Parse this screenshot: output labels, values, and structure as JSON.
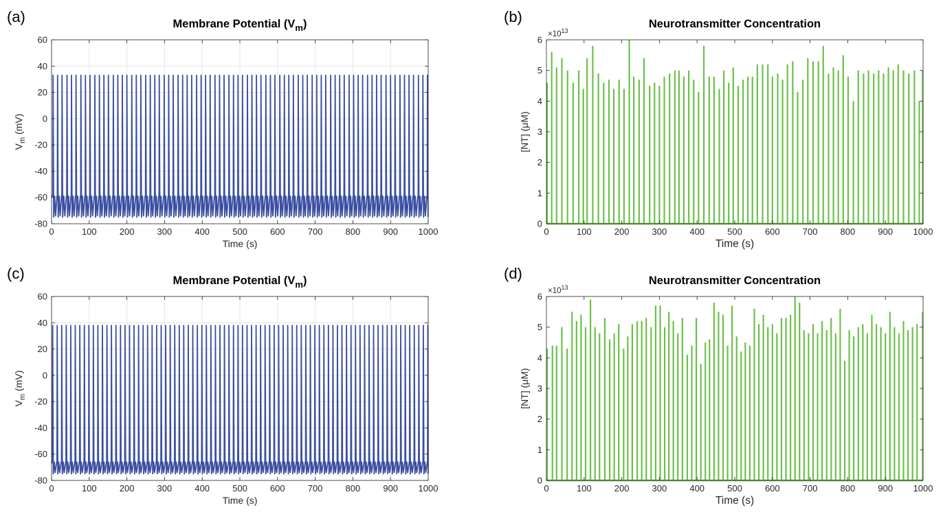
{
  "chart_data": [
    {
      "panel_label": "(a)",
      "type": "line",
      "title": "Membrane Potential (V",
      "title_sub": "m",
      "title_close": ")",
      "xlabel": "Time (s)",
      "ylabel": "V",
      "ylabel_sub": "m",
      "ylabel_unit": " (mV)",
      "xlim": [
        0,
        1000
      ],
      "ylim": [
        -80,
        60
      ],
      "xticks": [
        0,
        100,
        200,
        300,
        400,
        500,
        600,
        700,
        800,
        900,
        1000
      ],
      "yticks": [
        -80,
        -60,
        -40,
        -20,
        0,
        20,
        40,
        60
      ],
      "grid": true,
      "color": "#3a4fa0",
      "series": [
        {
          "spike_times": [
            4,
            16,
            28,
            41,
            53,
            65,
            78,
            90,
            102,
            115,
            127,
            139,
            151,
            164,
            176,
            188,
            200,
            213,
            225,
            237,
            250,
            262,
            274,
            286,
            299,
            311,
            323,
            336,
            348,
            360,
            372,
            385,
            397,
            409,
            421,
            434,
            446,
            458,
            471,
            483,
            495,
            507,
            520,
            532,
            544,
            556,
            569,
            581,
            593,
            606,
            618,
            630,
            642,
            655,
            667,
            679,
            692,
            704,
            716,
            728,
            741,
            753,
            765,
            777,
            790,
            802,
            814,
            826,
            839,
            851,
            863,
            875,
            888,
            900,
            912,
            925,
            937,
            949,
            961,
            974,
            986,
            998
          ],
          "spike_peak_mV": 33,
          "trough_mV": -75,
          "inter_spike_max_mV": -60
        }
      ]
    },
    {
      "panel_label": "(b)",
      "type": "bar",
      "title": "Neurotransmitter Concentration",
      "xlabel": "Time (s)",
      "ylabel": "[NT] (μM)",
      "exponent_label": "×10",
      "exponent_power": "13",
      "xlim": [
        0,
        1000
      ],
      "ylim": [
        0,
        6
      ],
      "xticks": [
        0,
        100,
        200,
        300,
        400,
        500,
        600,
        700,
        800,
        900,
        1000
      ],
      "yticks": [
        0,
        1,
        2,
        3,
        4,
        5,
        6
      ],
      "grid": false,
      "color": "#6cc04a",
      "series": [
        {
          "x": [
            2,
            14,
            27,
            41,
            56,
            71,
            86,
            98,
            108,
            123,
            138,
            152,
            166,
            179,
            193,
            206,
            220,
            232,
            246,
            259,
            274,
            287,
            300,
            313,
            327,
            341,
            352,
            365,
            378,
            391,
            404,
            418,
            432,
            445,
            459,
            471,
            484,
            496,
            509,
            522,
            535,
            547,
            560,
            574,
            588,
            600,
            614,
            627,
            640,
            654,
            667,
            681,
            694,
            708,
            722,
            735,
            749,
            762,
            775,
            788,
            801,
            815,
            828,
            842,
            855,
            869,
            882,
            895,
            908,
            921,
            934,
            948,
            962,
            977,
            990,
            999
          ],
          "y": [
            4.6,
            5.6,
            5.1,
            5.4,
            5.0,
            4.6,
            5.0,
            4.4,
            5.4,
            5.8,
            4.9,
            4.6,
            4.7,
            4.4,
            4.7,
            4.4,
            6.0,
            4.8,
            4.7,
            5.4,
            4.5,
            4.6,
            4.5,
            4.8,
            4.9,
            5.0,
            5.0,
            4.8,
            5.0,
            4.7,
            4.3,
            5.8,
            4.8,
            4.8,
            4.4,
            5.0,
            4.6,
            5.1,
            4.5,
            4.7,
            4.8,
            4.8,
            5.2,
            5.2,
            5.2,
            4.8,
            4.9,
            4.7,
            5.2,
            5.3,
            4.3,
            4.7,
            5.4,
            5.3,
            5.3,
            5.8,
            4.9,
            5.1,
            5.0,
            5.5,
            4.8,
            4.0,
            5.0,
            4.9,
            5.0,
            4.9,
            5.0,
            4.9,
            5.1,
            5.0,
            5.2,
            5.0,
            4.9,
            5.0,
            4.0,
            5.0
          ]
        }
      ]
    },
    {
      "panel_label": "(c)",
      "type": "line",
      "title": "Membrane Potential (V",
      "title_sub": "m",
      "title_close": ")",
      "xlabel": "Time (s)",
      "ylabel": "V",
      "ylabel_sub": "m",
      "ylabel_unit": " (mV)",
      "xlim": [
        0,
        1000
      ],
      "ylim": [
        -80,
        60
      ],
      "xticks": [
        0,
        100,
        200,
        300,
        400,
        500,
        600,
        700,
        800,
        900,
        1000
      ],
      "yticks": [
        -80,
        -60,
        -40,
        -20,
        0,
        20,
        40,
        60
      ],
      "grid": true,
      "color": "#3a4fa0",
      "series": [
        {
          "spike_times": [
            3,
            15,
            27,
            39,
            51,
            63,
            75,
            87,
            99,
            111,
            123,
            135,
            147,
            159,
            171,
            183,
            195,
            207,
            219,
            231,
            243,
            255,
            267,
            279,
            291,
            303,
            315,
            327,
            339,
            351,
            363,
            375,
            387,
            399,
            411,
            423,
            435,
            447,
            459,
            471,
            483,
            495,
            507,
            519,
            531,
            543,
            555,
            567,
            579,
            591,
            603,
            615,
            627,
            639,
            651,
            663,
            675,
            687,
            699,
            711,
            723,
            735,
            747,
            759,
            771,
            783,
            795,
            807,
            819,
            831,
            843,
            855,
            867,
            879,
            891,
            903,
            915,
            927,
            939,
            951,
            963,
            975,
            987,
            999
          ],
          "spike_peak_mV": 38,
          "trough_mV": -75,
          "inter_spike_max_mV": -67
        }
      ]
    },
    {
      "panel_label": "(d)",
      "type": "bar",
      "title": "Neurotransmitter Concentration",
      "xlabel": "Time (s)",
      "ylabel": "[NT] (μM)",
      "exponent_label": "×10",
      "exponent_power": "13",
      "xlim": [
        0,
        1000
      ],
      "ylim": [
        0,
        6
      ],
      "xticks": [
        0,
        100,
        200,
        300,
        400,
        500,
        600,
        700,
        800,
        900,
        1000
      ],
      "yticks": [
        0,
        1,
        2,
        3,
        4,
        5,
        6
      ],
      "grid": false,
      "color": "#6cc04a",
      "series": [
        {
          "x": [
            2,
            16,
            27,
            41,
            55,
            68,
            80,
            92,
            104,
            117,
            129,
            141,
            155,
            168,
            180,
            192,
            205,
            216,
            228,
            241,
            253,
            265,
            278,
            290,
            302,
            314,
            325,
            337,
            349,
            361,
            374,
            386,
            398,
            410,
            422,
            433,
            445,
            457,
            469,
            481,
            493,
            505,
            517,
            528,
            540,
            552,
            564,
            576,
            588,
            600,
            612,
            624,
            636,
            648,
            660,
            672,
            684,
            696,
            708,
            720,
            732,
            744,
            756,
            768,
            780,
            792,
            804,
            816,
            828,
            840,
            852,
            864,
            876,
            888,
            900,
            912,
            924,
            936,
            948,
            960,
            972,
            984,
            999
          ],
          "y": [
            4.3,
            4.4,
            4.4,
            5.0,
            4.3,
            5.5,
            5.2,
            5.4,
            5.0,
            5.9,
            5.0,
            4.8,
            5.3,
            4.6,
            4.8,
            5.1,
            4.3,
            4.7,
            5.1,
            5.2,
            5.2,
            5.3,
            5.0,
            5.7,
            5.7,
            5.0,
            5.5,
            5.2,
            4.8,
            5.3,
            4.1,
            4.4,
            5.3,
            3.8,
            4.5,
            4.6,
            5.8,
            5.5,
            5.4,
            4.4,
            5.7,
            4.7,
            4.2,
            4.5,
            4.4,
            5.6,
            5.1,
            5.4,
            5.0,
            5.1,
            4.8,
            5.3,
            5.3,
            5.4,
            6.0,
            5.8,
            4.9,
            4.8,
            5.1,
            4.8,
            5.2,
            4.9,
            5.3,
            4.8,
            5.6,
            3.9,
            4.9,
            4.7,
            5.0,
            5.1,
            4.8,
            5.4,
            5.1,
            5.0,
            4.8,
            5.5,
            5.0,
            4.8,
            5.2,
            4.9,
            5.0,
            5.1,
            5.5
          ]
        }
      ]
    }
  ]
}
